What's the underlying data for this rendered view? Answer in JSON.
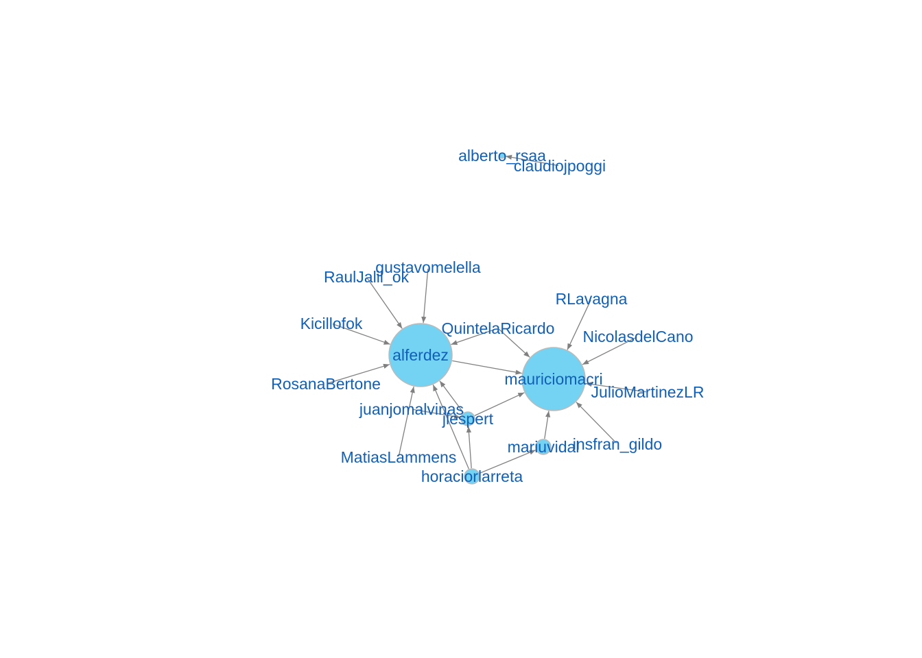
{
  "colors": {
    "edge": "#808080",
    "node_fill": "#74D2F2",
    "node_stroke": "#BBBBBB",
    "label": "#1060B8",
    "background": "#FFFFFF"
  },
  "nodes": [
    {
      "id": "alberto_rsaa",
      "label": "alberto_rsaa"
    },
    {
      "id": "claudiojpoggi",
      "label": "claudiojpoggi"
    },
    {
      "id": "gustavomelella",
      "label": "gustavomelella"
    },
    {
      "id": "RaulJalil_ok",
      "label": "RaulJalil_ok"
    },
    {
      "id": "RLavagna",
      "label": "RLavagna"
    },
    {
      "id": "Kicillofok",
      "label": "Kicillofok"
    },
    {
      "id": "QuintelaRicardo",
      "label": "QuintelaRicardo"
    },
    {
      "id": "NicolasdelCano",
      "label": "NicolasdelCano"
    },
    {
      "id": "alferdez",
      "label": "alferdez"
    },
    {
      "id": "RosanaBertone",
      "label": "RosanaBertone"
    },
    {
      "id": "mauriciomacri",
      "label": "mauriciomacri"
    },
    {
      "id": "JulioMartinezLR",
      "label": "JulioMartinezLR"
    },
    {
      "id": "juanjomalvinas",
      "label": "juanjomalvinas"
    },
    {
      "id": "jlespert",
      "label": "jlespert"
    },
    {
      "id": "insfran_gildo",
      "label": "insfran_gildo"
    },
    {
      "id": "mariuvidal",
      "label": "mariuvidal"
    },
    {
      "id": "MatiasLammens",
      "label": "MatiasLammens"
    },
    {
      "id": "horaciorlarreta",
      "label": "horaciorlarreta"
    }
  ],
  "edges": [
    {
      "from": "claudiojpoggi",
      "to": "alberto_rsaa"
    },
    {
      "from": "gustavomelella",
      "to": "alferdez"
    },
    {
      "from": "RaulJalil_ok",
      "to": "alferdez"
    },
    {
      "from": "Kicillofok",
      "to": "alferdez"
    },
    {
      "from": "RosanaBertone",
      "to": "alferdez"
    },
    {
      "from": "QuintelaRicardo",
      "to": "alferdez"
    },
    {
      "from": "QuintelaRicardo",
      "to": "mauriciomacri"
    },
    {
      "from": "alferdez",
      "to": "mauriciomacri"
    },
    {
      "from": "RLavagna",
      "to": "mauriciomacri"
    },
    {
      "from": "NicolasdelCano",
      "to": "mauriciomacri"
    },
    {
      "from": "JulioMartinezLR",
      "to": "mauriciomacri"
    },
    {
      "from": "insfran_gildo",
      "to": "mauriciomacri"
    },
    {
      "from": "jlespert",
      "to": "mauriciomacri"
    },
    {
      "from": "jlespert",
      "to": "alferdez"
    },
    {
      "from": "juanjomalvinas",
      "to": "jlespert"
    },
    {
      "from": "mariuvidal",
      "to": "mauriciomacri"
    },
    {
      "from": "horaciorlarreta",
      "to": "mariuvidal"
    },
    {
      "from": "horaciorlarreta",
      "to": "jlespert"
    },
    {
      "from": "horaciorlarreta",
      "to": "alferdez"
    },
    {
      "from": "MatiasLammens",
      "to": "alferdez"
    }
  ]
}
